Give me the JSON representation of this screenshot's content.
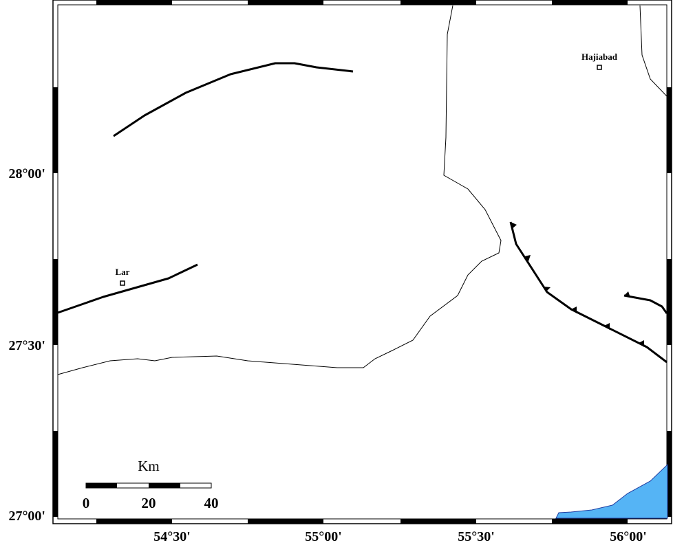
{
  "map": {
    "lat_labels": [
      "28°00'",
      "27°30'",
      "27°00'"
    ],
    "lon_labels": [
      "54°30'",
      "55°00'",
      "55°30'",
      "56°00'"
    ],
    "places": [
      {
        "label": "Lar"
      },
      {
        "label": "Hajiabad"
      }
    ],
    "scale": {
      "unit": "Km",
      "labels": [
        "0",
        "20",
        "40"
      ]
    }
  }
}
